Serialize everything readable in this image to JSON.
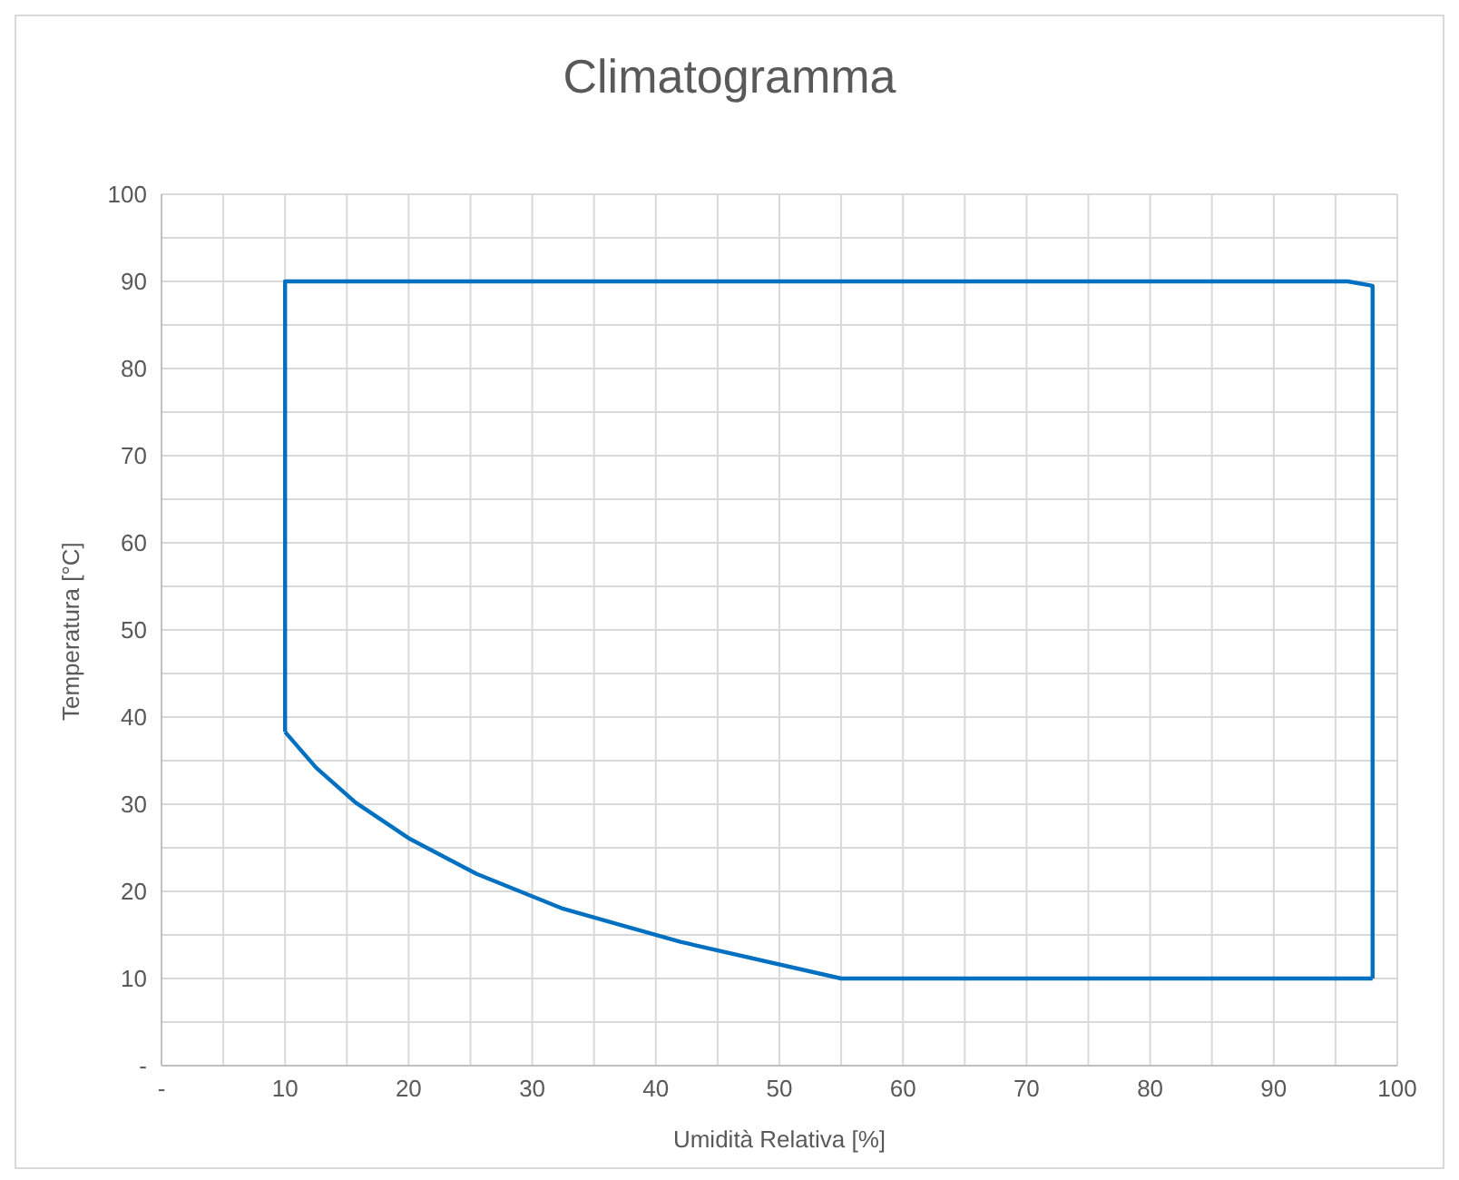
{
  "chart_data": {
    "type": "line",
    "title": "Climatogramma",
    "xlabel": "Umidità Relativa [%]",
    "ylabel": "Temperatura [°C]",
    "series": [
      {
        "color": "#0070c0",
        "x": [
          10,
          12.5,
          15.7,
          20,
          25.5,
          32.5,
          42,
          55,
          98
        ],
        "values": [
          38.3,
          34.2,
          30.2,
          26.1,
          22,
          18,
          14.2,
          10,
          10
        ]
      },
      {
        "color": "#0070c0",
        "x": [
          10,
          10,
          96,
          98,
          98
        ],
        "values": [
          38.3,
          90,
          90,
          89.5,
          10
        ]
      }
    ],
    "xlim": [
      0,
      100
    ],
    "ylim": [
      0,
      100
    ],
    "xticks": [
      {
        "value": 0,
        "label": "-"
      },
      {
        "value": 5,
        "label": null
      },
      10,
      {
        "value": 15,
        "label": null
      },
      20,
      {
        "value": 25,
        "label": null
      },
      30,
      {
        "value": 35,
        "label": null
      },
      40,
      {
        "value": 45,
        "label": null
      },
      50,
      {
        "value": 55,
        "label": null
      },
      60,
      {
        "value": 65,
        "label": null
      },
      70,
      {
        "value": 75,
        "label": null
      },
      80,
      {
        "value": 85,
        "label": null
      },
      90,
      {
        "value": 95,
        "label": null
      },
      100
    ],
    "yticks": [
      {
        "value": 0,
        "label": "-"
      },
      {
        "value": 5,
        "label": null
      },
      10,
      {
        "value": 15,
        "label": null
      },
      20,
      {
        "value": 25,
        "label": null
      },
      30,
      {
        "value": 35,
        "label": null
      },
      40,
      {
        "value": 45,
        "label": null
      },
      50,
      {
        "value": 55,
        "label": null
      },
      60,
      {
        "value": 65,
        "label": null
      },
      70,
      {
        "value": 75,
        "label": null
      },
      80,
      {
        "value": 85,
        "label": null
      },
      90,
      {
        "value": 95,
        "label": null
      },
      100
    ],
    "grid": true,
    "marker": "none",
    "line_style": "solid",
    "legend": false
  }
}
